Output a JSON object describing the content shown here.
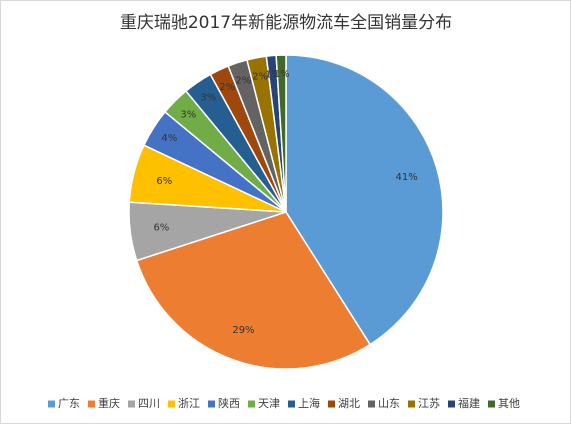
{
  "chart_data": {
    "type": "pie",
    "title": "重庆瑞驰2017年新能源物流车全国销量分布",
    "categories": [
      "广东",
      "重庆",
      "四川",
      "浙江",
      "陕西",
      "天津",
      "上海",
      "湖北",
      "山东",
      "江苏",
      "福建",
      "其他"
    ],
    "values": [
      41,
      29,
      6,
      6,
      4,
      3,
      3,
      2,
      2,
      2,
      1,
      1
    ],
    "value_labels": [
      "41%",
      "29%",
      "6%",
      "6%",
      "4%",
      "3%",
      "3%",
      "2%",
      "2%",
      "2%",
      "1%",
      "1%"
    ],
    "colors": [
      "#5b9bd5",
      "#ed7d31",
      "#a5a5a5",
      "#ffc000",
      "#4472c4",
      "#70ad47",
      "#255e91",
      "#9e480e",
      "#636363",
      "#997300",
      "#264478",
      "#43682b"
    ],
    "legend": "bottom"
  }
}
